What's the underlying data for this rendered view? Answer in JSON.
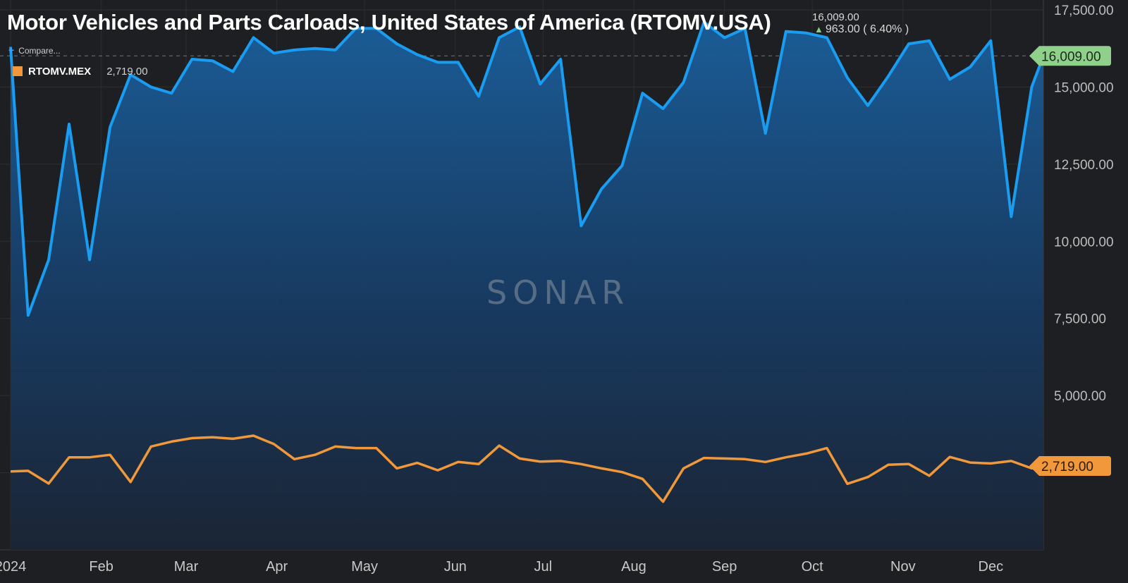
{
  "header": {
    "title": "Motor Vehicles and Parts Carloads, United States of America (RTOMV.USA)",
    "last_value": "16,009.00",
    "change": "963.00 ( 6.40% )"
  },
  "compare_label": "Compare...",
  "legend": {
    "series_name": "RTOMV.MEX",
    "series_value": "2,719.00"
  },
  "watermark": "SONAR",
  "colors": {
    "usa_line": "#1a9cf0",
    "mex_line": "#f0983a",
    "last_value_tag": "#8fd18a",
    "background": "#1e1f22"
  },
  "chart_data": {
    "type": "area",
    "ylim": [
      0,
      17500
    ],
    "yticks": [
      5000,
      7500,
      10000,
      12500,
      15000,
      17500
    ],
    "ytick_labels": [
      "5,000.00",
      "7,500.00",
      "10,000.00",
      "12,500.00",
      "15,000.00",
      "17,500.00"
    ],
    "xlim": [
      "2024-01-01",
      "2024-12-19"
    ],
    "month_ticks": [
      {
        "date": "2024-01-01",
        "label": "2024"
      },
      {
        "date": "2024-02-01",
        "label": "Feb"
      },
      {
        "date": "2024-03-01",
        "label": "Mar"
      },
      {
        "date": "2024-04-01",
        "label": "Apr"
      },
      {
        "date": "2024-05-01",
        "label": "May"
      },
      {
        "date": "2024-06-01",
        "label": "Jun"
      },
      {
        "date": "2024-07-01",
        "label": "Jul"
      },
      {
        "date": "2024-08-01",
        "label": "Aug"
      },
      {
        "date": "2024-09-01",
        "label": "Sep"
      },
      {
        "date": "2024-10-01",
        "label": "Oct"
      },
      {
        "date": "2024-11-01",
        "label": "Nov"
      },
      {
        "date": "2024-12-01",
        "label": "Dec"
      }
    ],
    "grid": true,
    "series": [
      {
        "name": "RTOMV.USA",
        "x": [
          "2024-01-01",
          "2024-01-07",
          "2024-01-14",
          "2024-01-21",
          "2024-01-28",
          "2024-02-04",
          "2024-02-11",
          "2024-02-18",
          "2024-02-25",
          "2024-03-03",
          "2024-03-10",
          "2024-03-17",
          "2024-03-24",
          "2024-03-31",
          "2024-04-07",
          "2024-04-14",
          "2024-04-21",
          "2024-04-28",
          "2024-05-05",
          "2024-05-12",
          "2024-05-19",
          "2024-05-26",
          "2024-06-02",
          "2024-06-09",
          "2024-06-16",
          "2024-06-23",
          "2024-06-30",
          "2024-07-07",
          "2024-07-14",
          "2024-07-21",
          "2024-07-28",
          "2024-08-04",
          "2024-08-11",
          "2024-08-18",
          "2024-08-25",
          "2024-09-01",
          "2024-09-08",
          "2024-09-15",
          "2024-09-22",
          "2024-09-29",
          "2024-10-06",
          "2024-10-13",
          "2024-10-20",
          "2024-10-27",
          "2024-11-03",
          "2024-11-10",
          "2024-11-17",
          "2024-11-24",
          "2024-12-01",
          "2024-12-08",
          "2024-12-15",
          "2024-12-19"
        ],
        "values": [
          16300,
          7600,
          9400,
          13800,
          9400,
          13700,
          15400,
          15000,
          14800,
          15900,
          15850,
          15500,
          16600,
          16100,
          16200,
          16250,
          16200,
          16900,
          16900,
          16400,
          16050,
          15800,
          15800,
          14700,
          16600,
          16950,
          15100,
          15900,
          10500,
          11700,
          12450,
          14800,
          14300,
          15150,
          17100,
          16600,
          16900,
          13500,
          16800,
          16750,
          16600,
          15300,
          14400,
          15350,
          16400,
          16500,
          15250,
          15650,
          16500,
          10800,
          15000,
          16009
        ]
      },
      {
        "name": "RTOMV.MEX",
        "x": [
          "2024-01-01",
          "2024-01-07",
          "2024-01-14",
          "2024-01-21",
          "2024-01-28",
          "2024-02-04",
          "2024-02-11",
          "2024-02-18",
          "2024-02-25",
          "2024-03-03",
          "2024-03-10",
          "2024-03-17",
          "2024-03-24",
          "2024-03-31",
          "2024-04-07",
          "2024-04-14",
          "2024-04-21",
          "2024-04-28",
          "2024-05-05",
          "2024-05-12",
          "2024-05-19",
          "2024-05-26",
          "2024-06-02",
          "2024-06-09",
          "2024-06-16",
          "2024-06-23",
          "2024-06-30",
          "2024-07-07",
          "2024-07-14",
          "2024-07-21",
          "2024-07-28",
          "2024-08-04",
          "2024-08-11",
          "2024-08-18",
          "2024-08-25",
          "2024-09-01",
          "2024-09-08",
          "2024-09-15",
          "2024-09-22",
          "2024-09-29",
          "2024-10-06",
          "2024-10-13",
          "2024-10-20",
          "2024-10-27",
          "2024-11-03",
          "2024-11-10",
          "2024-11-17",
          "2024-11-24",
          "2024-12-01",
          "2024-12-08",
          "2024-12-15",
          "2024-12-19"
        ],
        "values": [
          2540,
          2560,
          2150,
          3000,
          3000,
          3080,
          2200,
          3350,
          3510,
          3620,
          3650,
          3600,
          3700,
          3430,
          2940,
          3080,
          3350,
          3300,
          3300,
          2640,
          2820,
          2580,
          2850,
          2780,
          3380,
          2960,
          2860,
          2880,
          2780,
          2640,
          2520,
          2300,
          1560,
          2640,
          2980,
          2960,
          2940,
          2850,
          3000,
          3120,
          3300,
          2140,
          2360,
          2760,
          2780,
          2400,
          3010,
          2830,
          2800,
          2880,
          2640,
          2719
        ]
      }
    ]
  }
}
